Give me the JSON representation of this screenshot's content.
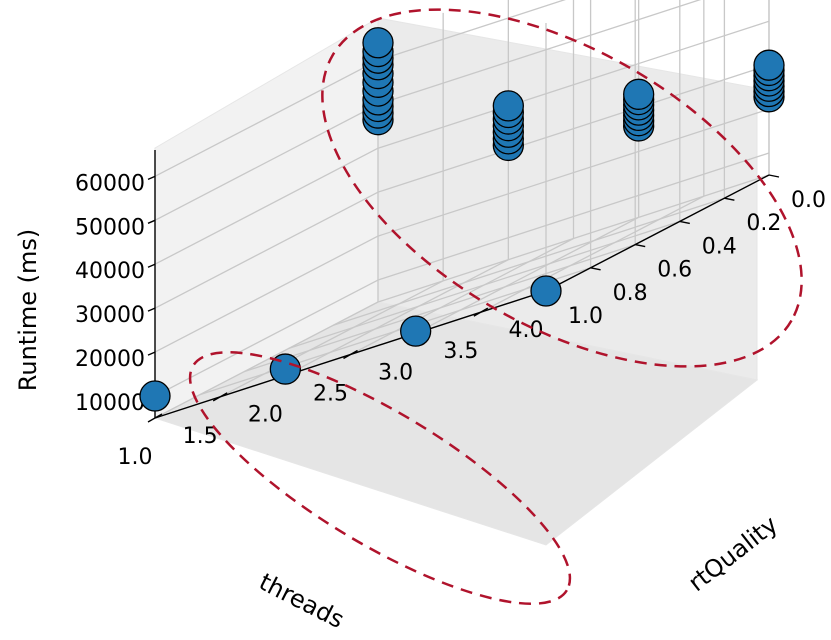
{
  "chart_data": {
    "type": "scatter",
    "projection": "3d",
    "xlabel": "threads",
    "ylabel": "rtQuality",
    "zlabel": "Runtime (ms)",
    "x_ticks": [
      "1.0",
      "1.5",
      "2.0",
      "2.5",
      "3.0",
      "3.5",
      "4.0"
    ],
    "y_ticks": [
      "0.0",
      "0.2",
      "0.4",
      "0.6",
      "0.8",
      "1.0"
    ],
    "z_ticks": [
      "10000",
      "20000",
      "30000",
      "40000",
      "50000",
      "60000"
    ],
    "xlim": [
      1.0,
      4.0
    ],
    "ylim": [
      0.0,
      1.0
    ],
    "zlim": [
      5000,
      66000
    ],
    "grid": true,
    "marker_color": "#1f77b4",
    "annotation_color": "#b0132c",
    "series": [
      {
        "points": [
          {
            "x": 1,
            "y": 0.0,
            "z": 64000
          },
          {
            "x": 1,
            "y": 0.0,
            "z": 62000
          },
          {
            "x": 1,
            "y": 0.0,
            "z": 60500
          },
          {
            "x": 1,
            "y": 0.0,
            "z": 59000
          },
          {
            "x": 1,
            "y": 0.0,
            "z": 57000
          },
          {
            "x": 1,
            "y": 0.0,
            "z": 55000
          },
          {
            "x": 1,
            "y": 0.0,
            "z": 53000
          },
          {
            "x": 1,
            "y": 0.0,
            "z": 51000
          },
          {
            "x": 1,
            "y": 0.0,
            "z": 49500
          },
          {
            "x": 1,
            "y": 0.0,
            "z": 48000
          },
          {
            "x": 1,
            "y": 0.0,
            "z": 46500
          },
          {
            "x": 2,
            "y": 0.0,
            "z": 40000
          },
          {
            "x": 2,
            "y": 0.0,
            "z": 38500
          },
          {
            "x": 2,
            "y": 0.0,
            "z": 37000
          },
          {
            "x": 2,
            "y": 0.0,
            "z": 35500
          },
          {
            "x": 2,
            "y": 0.0,
            "z": 34000
          },
          {
            "x": 2,
            "y": 0.0,
            "z": 32500
          },
          {
            "x": 2,
            "y": 0.0,
            "z": 31000
          },
          {
            "x": 3,
            "y": 0.0,
            "z": 33000
          },
          {
            "x": 3,
            "y": 0.0,
            "z": 31800
          },
          {
            "x": 3,
            "y": 0.0,
            "z": 30600
          },
          {
            "x": 3,
            "y": 0.0,
            "z": 29400
          },
          {
            "x": 3,
            "y": 0.0,
            "z": 28200
          },
          {
            "x": 3,
            "y": 0.0,
            "z": 27000
          },
          {
            "x": 3,
            "y": 0.0,
            "z": 25800
          },
          {
            "x": 4,
            "y": 0.0,
            "z": 30000
          },
          {
            "x": 4,
            "y": 0.0,
            "z": 28800
          },
          {
            "x": 4,
            "y": 0.0,
            "z": 27600
          },
          {
            "x": 4,
            "y": 0.0,
            "z": 26400
          },
          {
            "x": 4,
            "y": 0.0,
            "z": 25200
          },
          {
            "x": 4,
            "y": 0.0,
            "z": 24000
          },
          {
            "x": 4,
            "y": 0.0,
            "z": 22800
          },
          {
            "x": 1,
            "y": 1.0,
            "z": 10000
          },
          {
            "x": 2,
            "y": 1.0,
            "z": 6500
          },
          {
            "x": 3,
            "y": 1.0,
            "z": 5500
          },
          {
            "x": 4,
            "y": 1.0,
            "z": 5000
          }
        ]
      }
    ]
  }
}
